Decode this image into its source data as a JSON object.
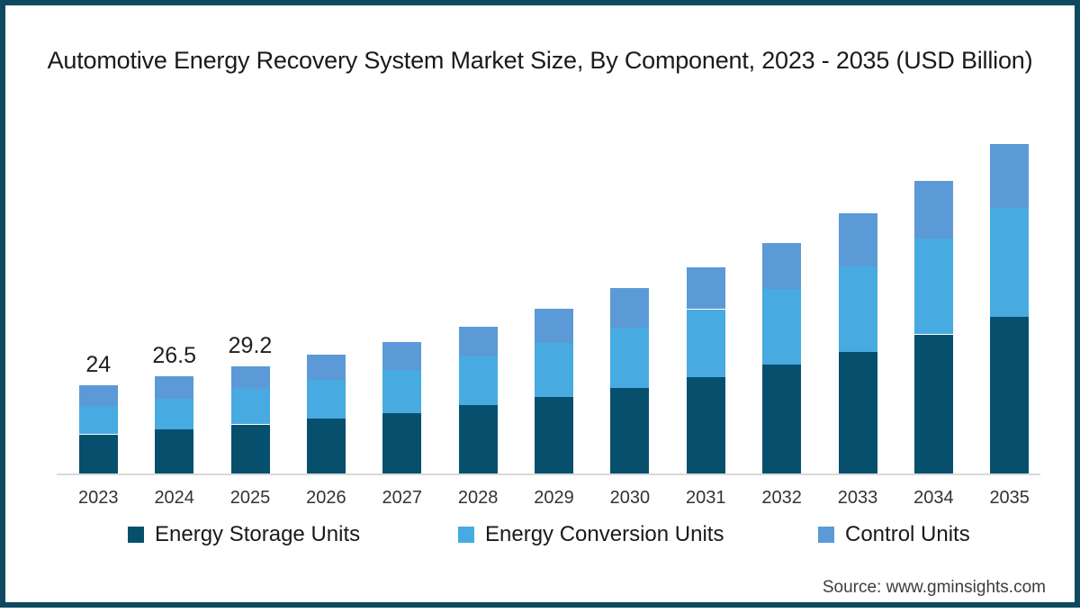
{
  "frame": {
    "border_color": "#0d4a5f",
    "background_color": "#ffffff"
  },
  "chart_data": {
    "type": "bar",
    "stacked": true,
    "title": "Automotive Energy Recovery System Market Size, By Component, 2023 - 2035 (USD Billion)",
    "xlabel": "",
    "ylabel": "",
    "unit": "USD Billion",
    "ylim": [
      0,
      95
    ],
    "gridlines": false,
    "y_axis_visible": false,
    "legend_position": "bottom",
    "axis_line_color": "#d9d9d9",
    "categories": [
      "2023",
      "2024",
      "2025",
      "2026",
      "2027",
      "2028",
      "2029",
      "2030",
      "2031",
      "2032",
      "2033",
      "2034",
      "2035"
    ],
    "series": [
      {
        "name": "Energy Storage Units",
        "color": "#06506e",
        "values": [
          10.7,
          12.0,
          13.4,
          14.9,
          16.5,
          18.6,
          20.9,
          23.4,
          26.3,
          29.7,
          33.3,
          38.0,
          42.8
        ]
      },
      {
        "name": "Energy Conversion Units",
        "color": "#47abe1",
        "values": [
          7.8,
          8.5,
          9.7,
          10.7,
          11.9,
          13.3,
          14.7,
          16.5,
          18.6,
          20.7,
          23.4,
          26.1,
          29.7
        ]
      },
      {
        "name": "Control Units",
        "color": "#5b9ad6",
        "values": [
          5.5,
          6.0,
          6.1,
          7.0,
          7.6,
          8.2,
          9.5,
          10.7,
          11.5,
          12.7,
          14.4,
          15.9,
          17.5
        ]
      }
    ],
    "totals": [
      24,
      26.5,
      29.2,
      32.6,
      36.0,
      40.1,
      45.1,
      50.6,
      56.4,
      63.1,
      71.1,
      80.0,
      90.0
    ],
    "bar_total_labels": [
      "24",
      "26.5",
      "29.2",
      null,
      null,
      null,
      null,
      null,
      null,
      null,
      null,
      null,
      null
    ],
    "label_color": "#1f1f1f",
    "tick_color": "#333333"
  },
  "footer": {
    "source": "Source: www.gminsights.com"
  }
}
